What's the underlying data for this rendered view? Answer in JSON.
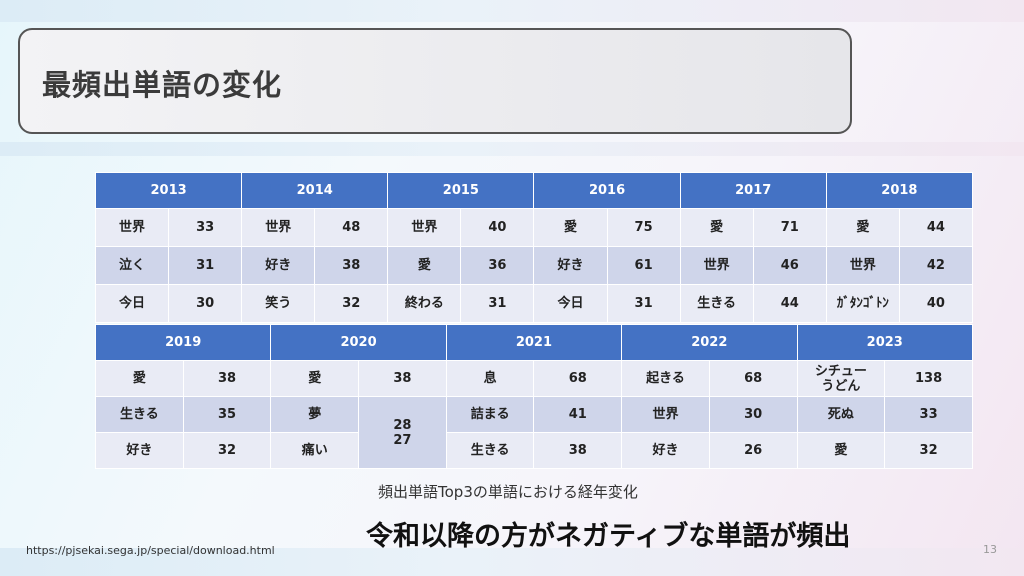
{
  "title": "最頻出単語の変化",
  "table_top": {
    "years": [
      "2013",
      "2014",
      "2015",
      "2016",
      "2017",
      "2018"
    ],
    "rows": [
      [
        [
          "世界",
          "33"
        ],
        [
          "世界",
          "48"
        ],
        [
          "世界",
          "40"
        ],
        [
          "愛",
          "75"
        ],
        [
          "愛",
          "71"
        ],
        [
          "愛",
          "44"
        ]
      ],
      [
        [
          "泣く",
          "31"
        ],
        [
          "好き",
          "38"
        ],
        [
          "愛",
          "36"
        ],
        [
          "好き",
          "61"
        ],
        [
          "世界",
          "46"
        ],
        [
          "世界",
          "42"
        ]
      ],
      [
        [
          "今日",
          "30"
        ],
        [
          "笑う",
          "32"
        ],
        [
          "終わる",
          "31"
        ],
        [
          "今日",
          "31"
        ],
        [
          "生きる",
          "44"
        ],
        [
          "ｶﾞﾀﾝｺﾞﾄﾝ",
          "40"
        ]
      ]
    ]
  },
  "table_bottom": {
    "years": [
      "2019",
      "2020",
      "2021",
      "2022",
      "2023"
    ],
    "rows": [
      [
        [
          "愛",
          "38"
        ],
        [
          "愛",
          "38"
        ],
        [
          "息",
          "68"
        ],
        [
          "起きる",
          "68"
        ],
        [
          "シチュー\nうどん",
          "138"
        ]
      ],
      [
        [
          "生きる",
          "35"
        ],
        [
          "夢",
          "28\n27"
        ],
        [
          "詰まる",
          "41"
        ],
        [
          "世界",
          "30"
        ],
        [
          "死ぬ",
          "33"
        ]
      ],
      [
        [
          "好き",
          "32"
        ],
        [
          "痛い",
          null
        ],
        [
          "生きる",
          "38"
        ],
        [
          "好き",
          "26"
        ],
        [
          "愛",
          "32"
        ]
      ]
    ]
  },
  "caption": "頻出単語Top3の単語における経年変化",
  "conclusion": "令和以降の方がネガティブな単語が頻出",
  "footer": {
    "url": "https://pjsekai.sega.jp/special/download.html",
    "page_number": "13"
  }
}
